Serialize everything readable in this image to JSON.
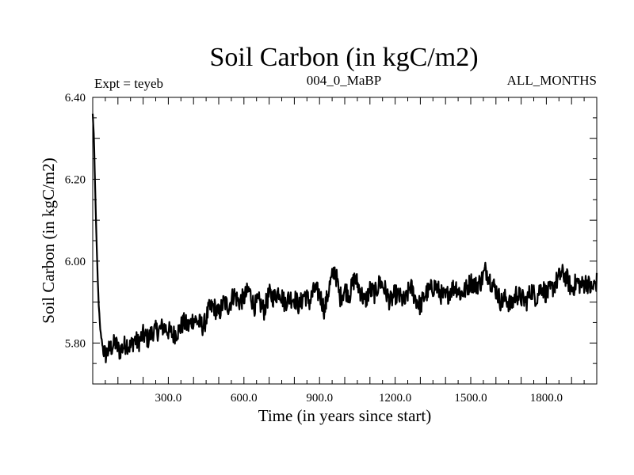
{
  "chart_data": {
    "type": "line",
    "title": "Soil Carbon (in kgC/m2)",
    "header_left": "Expt = teyeb",
    "header_center": "004_0_MaBP",
    "header_right": "ALL_MONTHS",
    "xlabel": "Time (in years since start)",
    "ylabel": "Soil Carbon (in kgC/m2)",
    "xlim": [
      0,
      2000
    ],
    "ylim": [
      5.7,
      6.4
    ],
    "xticks": [
      {
        "value": 300,
        "label": "300.0"
      },
      {
        "value": 600,
        "label": "600.0"
      },
      {
        "value": 900,
        "label": "900.0"
      },
      {
        "value": 1200,
        "label": "1200.0"
      },
      {
        "value": 1500,
        "label": "1500.0"
      },
      {
        "value": 1800,
        "label": "1800.0"
      }
    ],
    "yticks": [
      {
        "value": 5.8,
        "label": "5.80"
      },
      {
        "value": 6.0,
        "label": "6.00"
      },
      {
        "value": 6.2,
        "label": "6.20"
      },
      {
        "value": 6.4,
        "label": "6.40"
      }
    ],
    "grid": false,
    "series": [
      {
        "name": "Soil Carbon",
        "color": "#000000",
        "x": [
          0,
          5,
          10,
          15,
          20,
          25,
          30,
          40,
          50,
          60,
          75,
          90,
          105,
          120,
          135,
          150,
          165,
          180,
          200,
          220,
          240,
          260,
          280,
          300,
          320,
          340,
          360,
          380,
          400,
          420,
          440,
          460,
          480,
          500,
          520,
          540,
          560,
          580,
          600,
          620,
          640,
          660,
          680,
          700,
          720,
          740,
          760,
          780,
          800,
          820,
          840,
          860,
          880,
          900,
          920,
          940,
          960,
          970,
          980,
          1000,
          1020,
          1040,
          1060,
          1080,
          1100,
          1120,
          1140,
          1160,
          1180,
          1200,
          1220,
          1240,
          1260,
          1280,
          1300,
          1320,
          1340,
          1360,
          1380,
          1400,
          1420,
          1440,
          1460,
          1480,
          1500,
          1520,
          1540,
          1560,
          1580,
          1600,
          1620,
          1640,
          1660,
          1680,
          1700,
          1720,
          1740,
          1760,
          1780,
          1800,
          1820,
          1840,
          1860,
          1880,
          1900,
          1920,
          1940,
          1960,
          1980,
          2000
        ],
        "values": [
          6.36,
          6.3,
          6.17,
          6.05,
          5.95,
          5.88,
          5.83,
          5.79,
          5.77,
          5.78,
          5.79,
          5.8,
          5.78,
          5.79,
          5.8,
          5.79,
          5.81,
          5.8,
          5.82,
          5.81,
          5.83,
          5.83,
          5.84,
          5.83,
          5.82,
          5.83,
          5.85,
          5.84,
          5.86,
          5.85,
          5.84,
          5.88,
          5.89,
          5.87,
          5.9,
          5.89,
          5.92,
          5.9,
          5.91,
          5.93,
          5.89,
          5.9,
          5.88,
          5.92,
          5.91,
          5.93,
          5.9,
          5.91,
          5.91,
          5.89,
          5.92,
          5.9,
          5.93,
          5.92,
          5.88,
          5.94,
          5.98,
          5.95,
          5.91,
          5.93,
          5.92,
          5.96,
          5.93,
          5.9,
          5.93,
          5.92,
          5.95,
          5.93,
          5.9,
          5.92,
          5.91,
          5.9,
          5.94,
          5.91,
          5.89,
          5.92,
          5.93,
          5.94,
          5.92,
          5.91,
          5.93,
          5.94,
          5.92,
          5.93,
          5.95,
          5.94,
          5.95,
          5.98,
          5.95,
          5.93,
          5.9,
          5.91,
          5.89,
          5.92,
          5.91,
          5.9,
          5.93,
          5.91,
          5.94,
          5.92,
          5.93,
          5.95,
          5.97,
          5.96,
          5.93,
          5.95,
          5.94,
          5.95,
          5.93,
          5.95
        ]
      }
    ]
  }
}
